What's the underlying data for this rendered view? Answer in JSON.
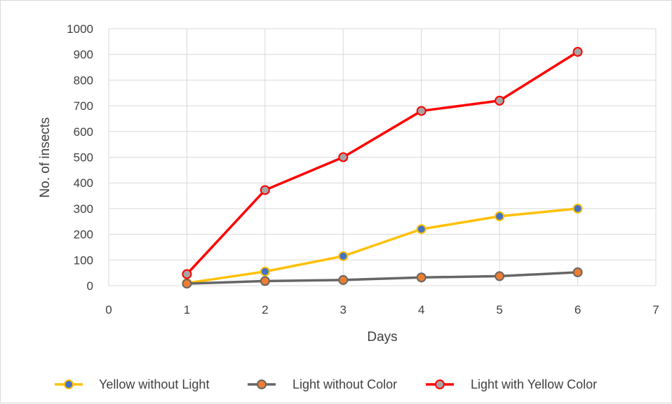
{
  "chart_data": {
    "type": "line",
    "title": "",
    "xlabel": "Days",
    "ylabel": "No. of insects",
    "xlim": [
      0,
      7
    ],
    "ylim": [
      0,
      1000
    ],
    "x_ticks": [
      "0",
      "1",
      "2",
      "3",
      "4",
      "5",
      "6",
      "7"
    ],
    "y_ticks": [
      "0",
      "100",
      "200",
      "300",
      "400",
      "500",
      "600",
      "700",
      "800",
      "900",
      "1000"
    ],
    "grid": "vertical and horizontal",
    "legend_position": "bottom",
    "x": [
      1,
      2,
      3,
      4,
      5,
      6
    ],
    "series": [
      {
        "name": "Yellow without Light",
        "values": [
          10,
          55,
          115,
          220,
          270,
          300
        ],
        "line_color": "#FFC000",
        "marker_color": "#4472C4"
      },
      {
        "name": "Light without Color",
        "values": [
          8,
          18,
          22,
          32,
          37,
          52
        ],
        "line_color": "#666666",
        "marker_color": "#ED7D31"
      },
      {
        "name": "Light with Yellow Color",
        "values": [
          45,
          372,
          500,
          680,
          720,
          910
        ],
        "line_color": "#FF0000",
        "marker_color": "#A5A5A5"
      }
    ]
  }
}
